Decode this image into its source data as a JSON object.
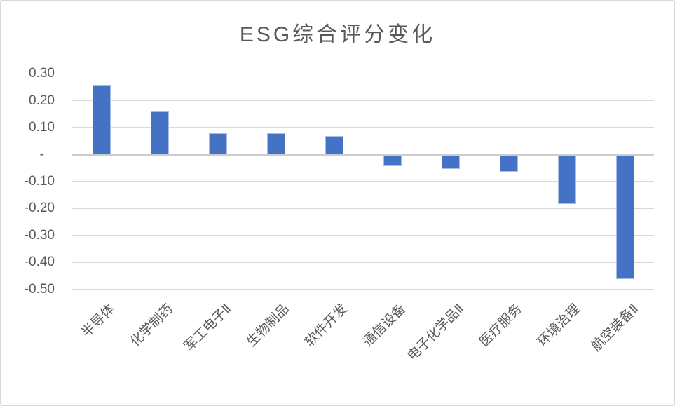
{
  "chart_data": {
    "type": "bar",
    "title": "ESG综合评分变化",
    "categories": [
      "半导体",
      "化学制药",
      "军工电子Ⅱ",
      "生物制品",
      "软件开发",
      "通信设备",
      "电子化学品Ⅱ",
      "医疗服务",
      "环境治理",
      "航空装备Ⅱ"
    ],
    "values": [
      0.26,
      0.16,
      0.08,
      0.08,
      0.07,
      -0.04,
      -0.05,
      -0.06,
      -0.18,
      -0.46
    ],
    "xlabel": "",
    "ylabel": "",
    "ylim": [
      -0.5,
      0.3
    ],
    "ytick_step": 0.1,
    "yticks": [
      {
        "value": 0.3,
        "label": "0.30"
      },
      {
        "value": 0.2,
        "label": "0.20"
      },
      {
        "value": 0.1,
        "label": "0.10"
      },
      {
        "value": 0.0,
        "label": "-"
      },
      {
        "value": -0.1,
        "label": "-0.10"
      },
      {
        "value": -0.2,
        "label": "-0.20"
      },
      {
        "value": -0.3,
        "label": "-0.30"
      },
      {
        "value": -0.4,
        "label": "-0.40"
      },
      {
        "value": -0.5,
        "label": "-0.50"
      }
    ],
    "grid": true,
    "legend": false,
    "x_labels_rotation_deg": -45,
    "colors": {
      "bar_fill": "#4472C4",
      "bar_edge": "#a9bde4",
      "gridline": "#D9D9D9",
      "axis_line": "#CCCCCC",
      "text": "#595959",
      "frame_border": "#D9D9D9",
      "background": "#FFFFFF"
    }
  }
}
